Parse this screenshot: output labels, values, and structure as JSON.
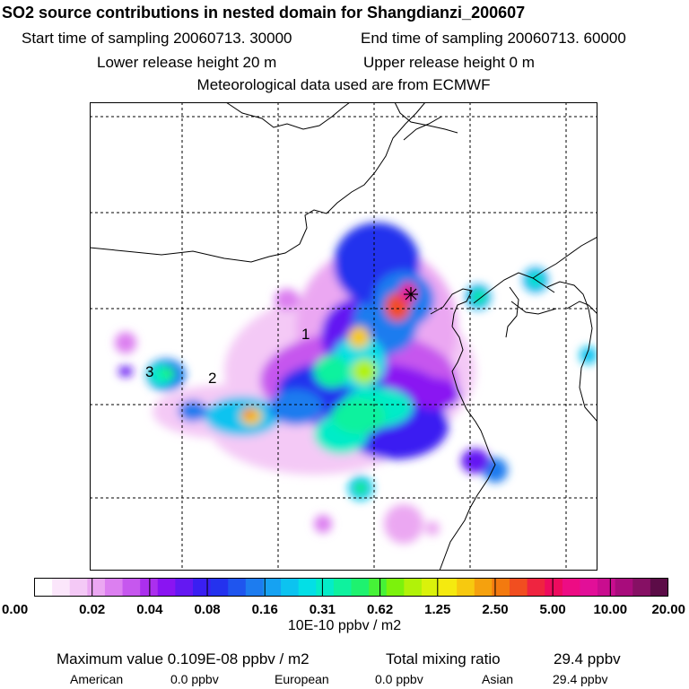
{
  "header": {
    "title": "SO2 source contributions in nested domain for Shangdianzi_200607",
    "start_time": "Start time of sampling 20060713. 30000",
    "end_time": "End time of sampling 20060713. 60000",
    "lower_release": "Lower release height   20 m",
    "upper_release": "Upper release height    0 m",
    "met_source": "Meteorological data used are from ECMWF"
  },
  "map": {
    "region_labels": [
      "1",
      "2",
      "3"
    ],
    "receptor_marker": "star-icon",
    "grid_lines": true,
    "colors": {
      "background": "#ffffff",
      "coast": "#000000"
    }
  },
  "colorbar": {
    "ticks": [
      "0.00",
      "0.02",
      "0.04",
      "0.08",
      "0.16",
      "0.31",
      "0.62",
      "1.25",
      "2.50",
      "5.00",
      "10.00",
      "20.00"
    ],
    "units": "10E-10 ppbv / m2",
    "colors": [
      "#ffffff",
      "#fbe6fb",
      "#f4c9f6",
      "#eba7f2",
      "#dc7ff0",
      "#c657ee",
      "#ab2fee",
      "#8a14f2",
      "#6418f2",
      "#3a1ff2",
      "#2432ee",
      "#1f55ee",
      "#1d7cef",
      "#16a2f2",
      "#0cc3f0",
      "#03dfe6",
      "#04ecc8",
      "#0ef29e",
      "#1ef26f",
      "#46f237",
      "#7cf20c",
      "#b1f209",
      "#daf20b",
      "#f5ea0f",
      "#f7c90f",
      "#f5a10e",
      "#f37a0f",
      "#f14e20",
      "#ef2440",
      "#ee0b5e",
      "#ed0c84",
      "#e20f98",
      "#c90d8f",
      "#a80c7c",
      "#861064",
      "#5c0c47"
    ]
  },
  "stats": {
    "max_value": "Maximum value  0.109E-08 ppbv / m2",
    "total_label": "Total mixing ratio",
    "total_value": "29.4 ppbv",
    "american_label": "American",
    "american_value": "0.0 ppbv",
    "european_label": "European",
    "european_value": "0.0 ppbv",
    "asian_label": "Asian",
    "asian_value": "29.4 ppbv"
  }
}
